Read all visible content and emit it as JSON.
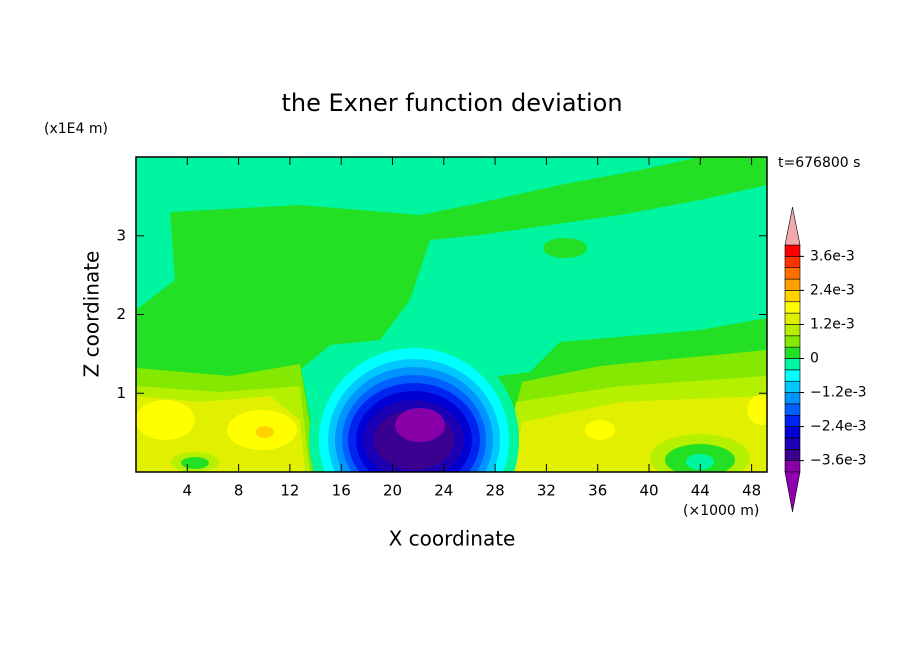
{
  "chart_data": {
    "type": "contour",
    "title": "the Exner function deviation",
    "x_label": "X coordinate",
    "y_label": "Z coordinate",
    "x_unit": "(×1000 m)",
    "y_unit": "(x1E4 m)",
    "time_label": "t=676800 s",
    "xlim": [
      0,
      49.2
    ],
    "ylim": [
      0,
      4
    ],
    "xticks": [
      4,
      8,
      12,
      16,
      20,
      24,
      28,
      32,
      36,
      40,
      44,
      48
    ],
    "yticks": [
      1,
      2,
      3
    ],
    "levels": [
      -0.004,
      -0.0036,
      -0.0032,
      -0.0028,
      -0.0024,
      -0.002,
      -0.0016,
      -0.0012,
      -0.0008,
      -0.0004,
      0,
      0.0004,
      0.0008,
      0.0012,
      0.0016,
      0.002,
      0.0024,
      0.0028,
      0.0032,
      0.0036,
      0.004
    ],
    "colors": [
      "#8a00a8",
      "#3a0090",
      "#1c00b4",
      "#0000d2",
      "#0024f0",
      "#0060ff",
      "#0094ff",
      "#00c8ff",
      "#00ffff",
      "#00f5a0",
      "#24e024",
      "#84e800",
      "#b4f000",
      "#e0f000",
      "#ffff00",
      "#ffd200",
      "#ffa000",
      "#ff7000",
      "#ff3400",
      "#ff0000"
    ],
    "extend_colors": [
      "#9000b0",
      "#f0a8a8"
    ],
    "colorbar_ticks": [
      {
        "value": 0.0036,
        "label": "3.6e-3"
      },
      {
        "value": 0.0024,
        "label": "2.4e-3"
      },
      {
        "value": 0.0012,
        "label": "1.2e-3"
      },
      0,
      {
        "value": -0.0012,
        "label": "−1.2e-3"
      },
      {
        "value": -0.0024,
        "label": "−2.4e-3"
      },
      {
        "value": -0.0036,
        "label": "−3.6e-3"
      }
    ]
  }
}
